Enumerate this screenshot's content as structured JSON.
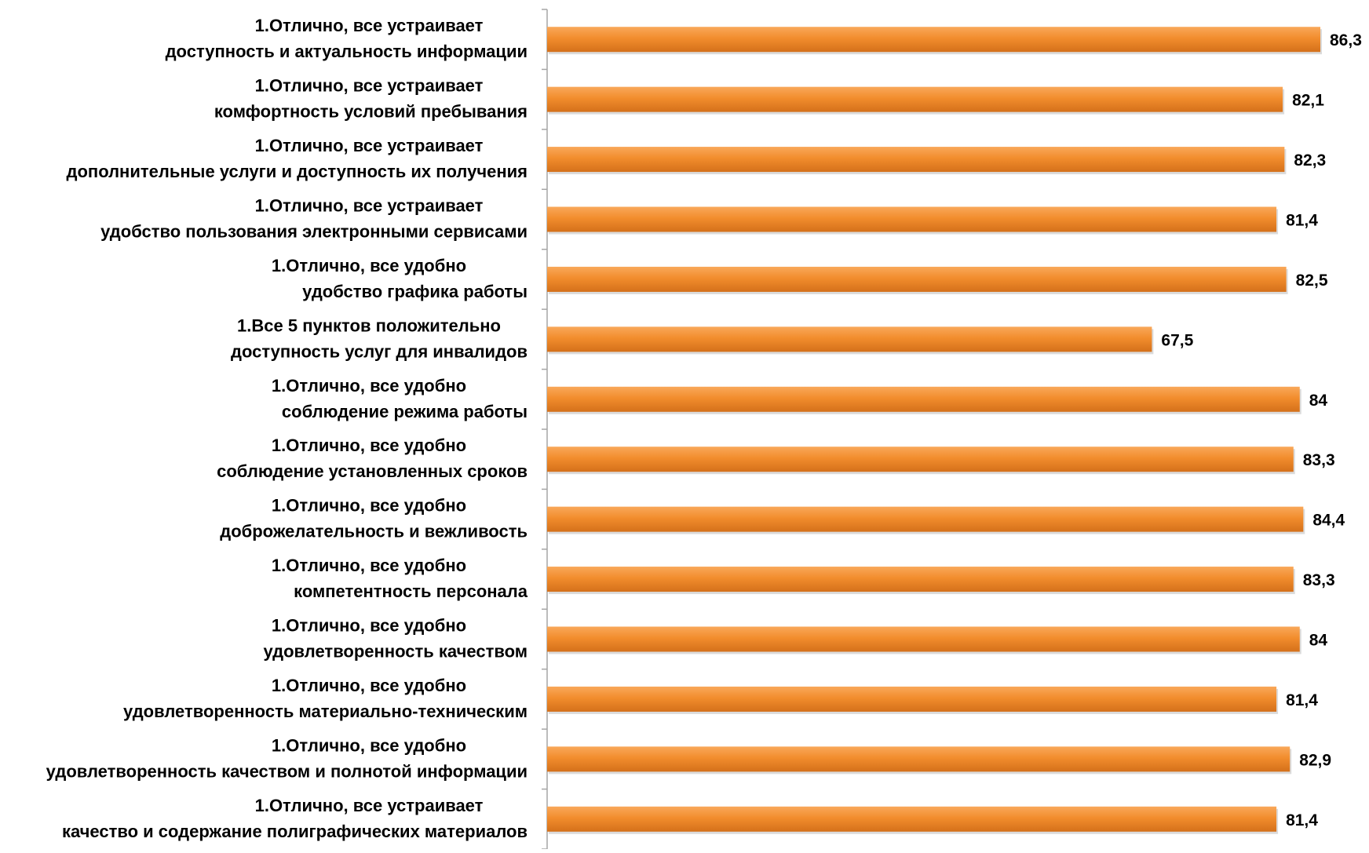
{
  "chart_data": {
    "type": "bar",
    "orientation": "horizontal",
    "title": "",
    "xlabel": "",
    "ylabel": "",
    "xlim": [
      0,
      88
    ],
    "grid": false,
    "legend": "none",
    "colors": {
      "bar": "#f28d2d",
      "bar_light": "#f9a85a",
      "bar_dark": "#d4701a",
      "axis": "#a6a6a6",
      "text": "#000000"
    },
    "categories": [
      {
        "line1": "1.Отлично, все устраивает",
        "line2": "доступность и актуальность информации"
      },
      {
        "line1": "1.Отлично, все устраивает",
        "line2": "комфортность условий пребывания"
      },
      {
        "line1": "1.Отлично, все устраивает",
        "line2": "дополнительные услуги и доступность их получения"
      },
      {
        "line1": "1.Отлично, все устраивает",
        "line2": "удобство пользования электронными сервисами"
      },
      {
        "line1": "1.Отлично, все удобно",
        "line2": "удобство графика работы"
      },
      {
        "line1": "1.Все 5 пунктов положительно",
        "line2": "доступность услуг для инвалидов"
      },
      {
        "line1": "1.Отлично, все удобно",
        "line2": "соблюдение режима работы"
      },
      {
        "line1": "1.Отлично, все удобно",
        "line2": "соблюдение установленных сроков"
      },
      {
        "line1": "1.Отлично, все удобно",
        "line2": "доброжелательность и вежливость"
      },
      {
        "line1": "1.Отлично, все удобно",
        "line2": "компетентность персонала"
      },
      {
        "line1": "1.Отлично, все удобно",
        "line2": "удовлетворенность качеством"
      },
      {
        "line1": "1.Отлично, все удобно",
        "line2": "удовлетворенность материально-техническим"
      },
      {
        "line1": "1.Отлично, все удобно",
        "line2": "удовлетворенность качеством и полнотой информации"
      },
      {
        "line1": "1.Отлично, все устраивает",
        "line2": "качество и  содержание полиграфических материалов"
      }
    ],
    "values": [
      86.3,
      82.1,
      82.3,
      81.4,
      82.5,
      67.5,
      84,
      83.3,
      84.4,
      83.3,
      84,
      81.4,
      82.9,
      81.4
    ],
    "value_labels": [
      "86,3",
      "82,1",
      "82,3",
      "81,4",
      "82,5",
      "67,5",
      "84",
      "83,3",
      "84,4",
      "83,3",
      "84",
      "81,4",
      "82,9",
      "81,4"
    ]
  }
}
